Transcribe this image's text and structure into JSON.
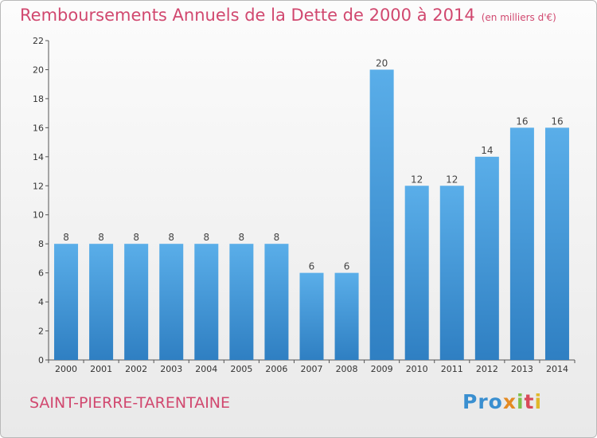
{
  "header": {
    "title": "Remboursements Annuels de la Dette de 2000 à 2014",
    "subtitle": "(en milliers d'€)"
  },
  "footer": {
    "place": "SAINT-PIERRE-TARENTAINE",
    "logo": [
      "Pro",
      "x",
      "i",
      "t",
      "i"
    ]
  },
  "colors": {
    "title": "#d1486f",
    "bar_top": "#5aaee9",
    "bar_bottom": "#2f7fc2"
  },
  "chart_data": {
    "type": "bar",
    "title": "Remboursements Annuels de la Dette de 2000 à 2014",
    "subtitle": "(en milliers d'€)",
    "xlabel": "",
    "ylabel": "",
    "categories": [
      "2000",
      "2001",
      "2002",
      "2003",
      "2004",
      "2005",
      "2006",
      "2007",
      "2008",
      "2009",
      "2010",
      "2011",
      "2012",
      "2013",
      "2014"
    ],
    "values": [
      8,
      8,
      8,
      8,
      8,
      8,
      8,
      6,
      6,
      20,
      12,
      12,
      14,
      16,
      16
    ],
    "ylim": [
      0,
      22
    ],
    "yticks": [
      0,
      2,
      4,
      6,
      8,
      10,
      12,
      14,
      16,
      18,
      20,
      22
    ],
    "grid": false,
    "legend": "none"
  }
}
